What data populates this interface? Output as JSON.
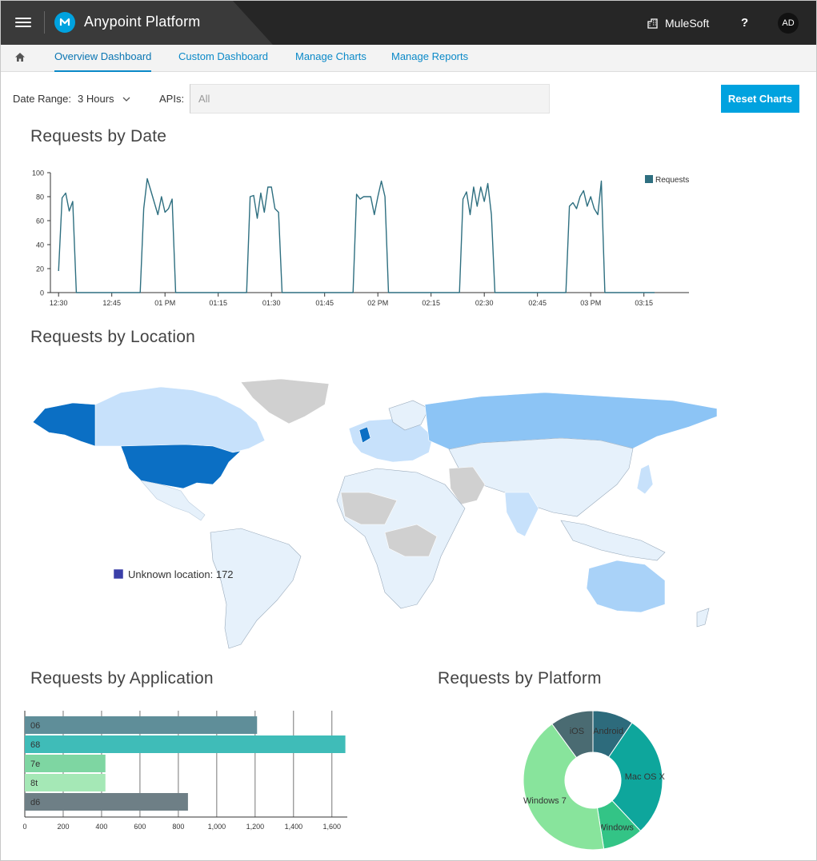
{
  "header": {
    "app_title": "Anypoint Platform",
    "org_name": "MuleSoft",
    "help_label": "?",
    "avatar_initials": "AD"
  },
  "nav": {
    "tabs": [
      {
        "label": "Overview Dashboard",
        "active": true
      },
      {
        "label": "Custom Dashboard",
        "active": false
      },
      {
        "label": "Manage Charts",
        "active": false
      },
      {
        "label": "Manage Reports",
        "active": false
      }
    ]
  },
  "filters": {
    "date_range_label": "Date Range:",
    "date_range_value": "3 Hours",
    "apis_label": "APIs:",
    "apis_value": "All",
    "reset_label": "Reset Charts"
  },
  "sections": {
    "requests_by_date": "Requests by Date",
    "requests_by_location": "Requests by Location",
    "requests_by_application": "Requests by Application",
    "requests_by_platform": "Requests by Platform"
  },
  "location": {
    "unknown_label": "Unknown location: 172",
    "unknown_color": "#3a3fa8"
  },
  "colors": {
    "accent": "#00a2df",
    "line": "#2e6f80",
    "map_high": "#0b6fc4",
    "map_mid": "#8cc4f5",
    "map_low": "#e6f1fb",
    "map_nodata": "#d0d0d0"
  },
  "chart_data": [
    {
      "type": "line",
      "title": "Requests by Date",
      "legend": "Requests",
      "legend_position": "top-right",
      "xlabel": "",
      "ylabel": "",
      "ylim": [
        0,
        100
      ],
      "yticks": [
        0,
        20,
        40,
        60,
        80,
        100
      ],
      "xticks": [
        "12:30",
        "12:45",
        "01 PM",
        "01:15",
        "01:30",
        "01:45",
        "02 PM",
        "02:15",
        "02:30",
        "02:45",
        "03 PM",
        "03:15"
      ],
      "series": [
        {
          "name": "Requests",
          "x_minutes": [
            0,
            1,
            2,
            3,
            4,
            5,
            6,
            7,
            8,
            23,
            24,
            25,
            26,
            27,
            28,
            29,
            30,
            31,
            32,
            33,
            34,
            53,
            54,
            55,
            56,
            57,
            58,
            59,
            60,
            61,
            62,
            63,
            64,
            83,
            84,
            85,
            86,
            87,
            88,
            89,
            90,
            91,
            92,
            93,
            94,
            113,
            114,
            115,
            116,
            117,
            118,
            119,
            120,
            121,
            122,
            123,
            124,
            143,
            144,
            145,
            146,
            147,
            148,
            149,
            150,
            151,
            152,
            153,
            154,
            168
          ],
          "values": [
            18,
            79,
            83,
            68,
            76,
            0,
            0,
            0,
            0,
            0,
            70,
            95,
            85,
            75,
            65,
            80,
            67,
            70,
            78,
            0,
            0,
            0,
            80,
            81,
            62,
            83,
            67,
            88,
            88,
            70,
            67,
            0,
            0,
            0,
            82,
            78,
            80,
            80,
            80,
            65,
            80,
            93,
            80,
            0,
            0,
            0,
            78,
            84,
            65,
            88,
            72,
            88,
            76,
            91,
            65,
            0,
            0,
            0,
            72,
            75,
            70,
            80,
            85,
            72,
            80,
            70,
            65,
            93,
            0,
            0
          ]
        }
      ]
    },
    {
      "type": "bar",
      "title": "Requests by Application",
      "orientation": "horizontal",
      "categories": [
        "06",
        "68",
        "7e",
        "8t",
        "d6"
      ],
      "values": [
        1210,
        1670,
        420,
        420,
        850
      ],
      "xlim": [
        0,
        1680
      ],
      "xticks": [
        "0",
        "200",
        "400",
        "600",
        "800",
        "1,000",
        "1,200",
        "1,400",
        "1,600"
      ],
      "xtick_values": [
        0,
        200,
        400,
        600,
        800,
        1000,
        1200,
        1400,
        1600
      ],
      "colors": [
        "#5f8e99",
        "#3fbcb8",
        "#7ed6a2",
        "#a5e8b6",
        "#6e7f86"
      ]
    },
    {
      "type": "pie",
      "title": "Requests by Platform",
      "donut": true,
      "labels": [
        "Android",
        "Mac OS X",
        "Windows",
        "Windows 7",
        "iOS"
      ],
      "values": [
        9.5,
        28.5,
        9.5,
        42.5,
        10
      ],
      "colors": [
        "#2d6b7c",
        "#0ea69c",
        "#33c486",
        "#88e49c",
        "#4a6b72"
      ]
    }
  ]
}
